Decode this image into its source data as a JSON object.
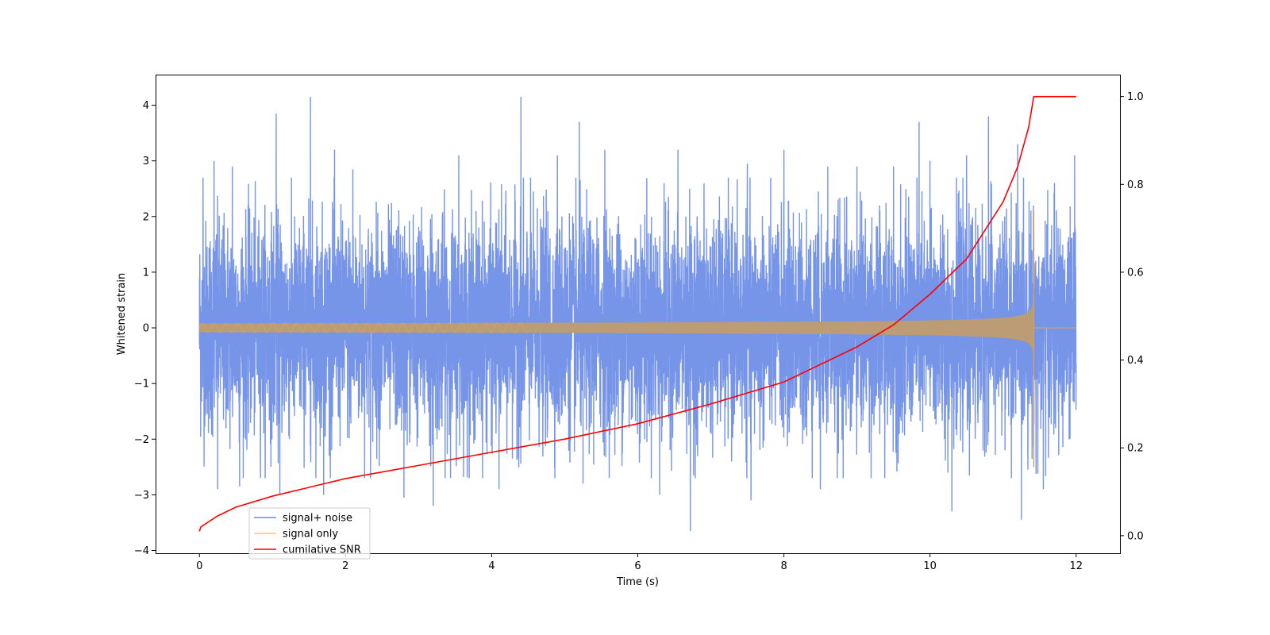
{
  "chart_data": {
    "type": "line",
    "title": "",
    "xlabel": "Time (s)",
    "ylabel": "Whitened strain",
    "y2label": "",
    "xlim": [
      -0.6,
      12.6
    ],
    "ylim": [
      -4.05,
      4.55
    ],
    "y2lim": [
      -0.04,
      1.05
    ],
    "xticks": [
      0,
      2,
      4,
      6,
      8,
      10,
      12
    ],
    "yticks": [
      -4,
      -3,
      -2,
      -1,
      0,
      1,
      2,
      3,
      4
    ],
    "y2ticks": [
      0.0,
      0.2,
      0.4,
      0.6,
      0.8,
      1.0
    ],
    "xtick_labels": [
      "0",
      "2",
      "4",
      "6",
      "8",
      "10",
      "12"
    ],
    "ytick_labels": [
      "−4",
      "−3",
      "−2",
      "−1",
      "0",
      "1",
      "2",
      "3",
      "4"
    ],
    "y2tick_labels": [
      "0.0",
      "0.2",
      "0.4",
      "0.6",
      "0.8",
      "1.0"
    ],
    "grid": false,
    "legend_position": "lower-left",
    "series": [
      {
        "name": "signal+ noise",
        "color": "#6a8be6",
        "axis": "left",
        "description_values": {
          "x_start": 0,
          "x_end": 12,
          "typical_range": [
            -1.8,
            1.8
          ],
          "max": 4.15,
          "min": -3.65
        },
        "peaks": [
          {
            "x": 0.05,
            "y": 2.7
          },
          {
            "x": 0.2,
            "y": 3.0
          },
          {
            "x": 0.45,
            "y": 2.9
          },
          {
            "x": 1.05,
            "y": 3.85
          },
          {
            "x": 1.52,
            "y": 4.15
          },
          {
            "x": 1.85,
            "y": 3.2
          },
          {
            "x": 2.1,
            "y": 2.85
          },
          {
            "x": 3.2,
            "y": 3.4
          },
          {
            "x": 3.55,
            "y": 3.1
          },
          {
            "x": 4.4,
            "y": 4.15
          },
          {
            "x": 4.9,
            "y": 3.1
          },
          {
            "x": 5.2,
            "y": 3.7
          },
          {
            "x": 5.55,
            "y": 3.2
          },
          {
            "x": 6.55,
            "y": 3.2
          },
          {
            "x": 7.5,
            "y": 2.95
          },
          {
            "x": 8.0,
            "y": 3.2
          },
          {
            "x": 8.6,
            "y": 2.9
          },
          {
            "x": 9.0,
            "y": 2.9
          },
          {
            "x": 9.5,
            "y": 2.9
          },
          {
            "x": 9.85,
            "y": 3.7
          },
          {
            "x": 10.0,
            "y": 3.0
          },
          {
            "x": 10.5,
            "y": 3.1
          },
          {
            "x": 10.8,
            "y": 3.8
          },
          {
            "x": 11.2,
            "y": 3.3
          },
          {
            "x": 11.98,
            "y": 3.1
          }
        ],
        "troughs": [
          {
            "x": 0.25,
            "y": -2.9
          },
          {
            "x": 0.55,
            "y": -2.85
          },
          {
            "x": 1.1,
            "y": -3.0
          },
          {
            "x": 1.7,
            "y": -3.0
          },
          {
            "x": 2.8,
            "y": -3.05
          },
          {
            "x": 3.2,
            "y": -3.2
          },
          {
            "x": 4.1,
            "y": -2.9
          },
          {
            "x": 5.25,
            "y": -2.8
          },
          {
            "x": 6.3,
            "y": -3.0
          },
          {
            "x": 6.72,
            "y": -3.65
          },
          {
            "x": 7.55,
            "y": -3.1
          },
          {
            "x": 8.5,
            "y": -2.9
          },
          {
            "x": 10.3,
            "y": -3.3
          },
          {
            "x": 11.25,
            "y": -3.45
          },
          {
            "x": 11.55,
            "y": -2.9
          }
        ]
      },
      {
        "name": "signal only",
        "color": "#ffc46e",
        "axis": "left",
        "envelope": {
          "x_start": 0,
          "x_end": 11.42,
          "amplitude_start": 0.08,
          "amplitude_end": 1.9,
          "flat_after": 0.0
        }
      },
      {
        "name": "cumilative SNR",
        "color": "#ff0000",
        "axis": "right",
        "x": [
          0,
          0.02,
          0.25,
          0.5,
          1,
          1.5,
          2,
          3,
          4,
          5,
          6,
          7,
          8,
          9,
          9.5,
          10,
          10.5,
          11,
          11.2,
          11.35,
          11.42,
          12
        ],
        "y": [
          0.01,
          0.02,
          0.045,
          0.065,
          0.09,
          0.11,
          0.13,
          0.16,
          0.19,
          0.22,
          0.255,
          0.3,
          0.35,
          0.43,
          0.48,
          0.55,
          0.63,
          0.76,
          0.84,
          0.93,
          1.0,
          1.0
        ]
      }
    ]
  }
}
